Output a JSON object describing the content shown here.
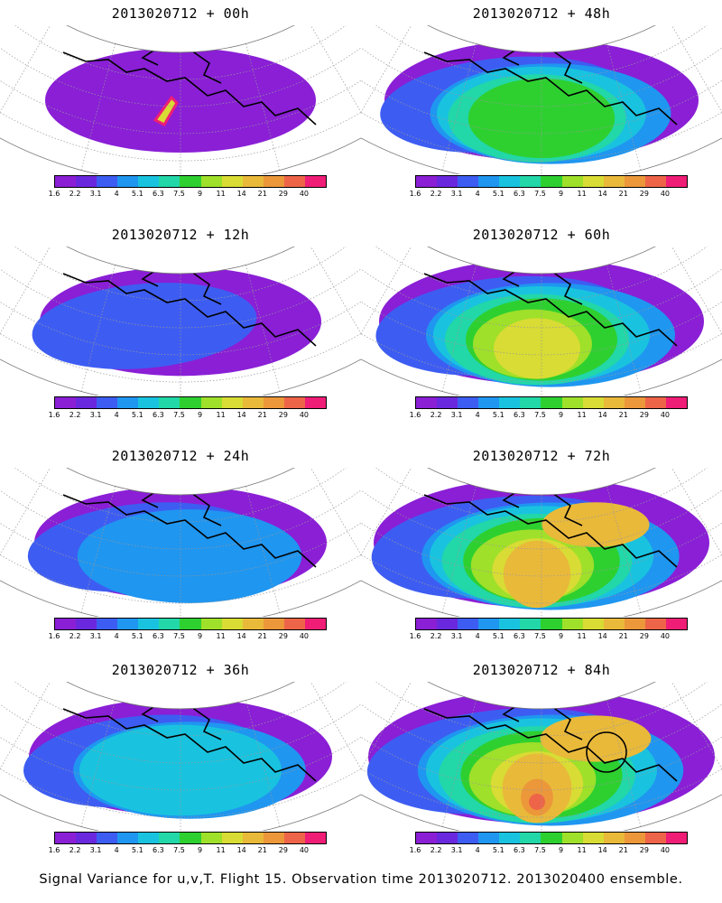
{
  "colorbar": {
    "labels": [
      "1.6",
      "2.2",
      "3.1",
      "4",
      "5.1",
      "6.3",
      "7.5",
      "9",
      "11",
      "14",
      "21",
      "29",
      "40"
    ],
    "colors": [
      "#8a1fd6",
      "#6a28de",
      "#3d5df2",
      "#1f96f0",
      "#19c3df",
      "#22d7a8",
      "#2ed030",
      "#9fe02a",
      "#d8dc34",
      "#e9b93a",
      "#ec973a",
      "#ee6448",
      "#ef1d76"
    ]
  },
  "panels": [
    {
      "title": "2013020712 + 00h",
      "level": 0,
      "hotspot": true,
      "circle": false
    },
    {
      "title": "2013020712 + 48h",
      "level": 4,
      "hotspot": false,
      "circle": false
    },
    {
      "title": "2013020712 + 12h",
      "level": 1,
      "hotspot": false,
      "circle": false
    },
    {
      "title": "2013020712 + 60h",
      "level": 5,
      "hotspot": false,
      "circle": false
    },
    {
      "title": "2013020712 + 24h",
      "level": 2,
      "hotspot": false,
      "circle": false
    },
    {
      "title": "2013020712 + 72h",
      "level": 6,
      "hotspot": false,
      "circle": false
    },
    {
      "title": "2013020712 + 36h",
      "level": 3,
      "hotspot": false,
      "circle": false
    },
    {
      "title": "2013020712 + 84h",
      "level": 7,
      "hotspot": false,
      "circle": true
    }
  ],
  "caption": "Signal Variance for u,v,T. Flight 15. Observation time 2013020712. 2013020400 ensemble."
}
